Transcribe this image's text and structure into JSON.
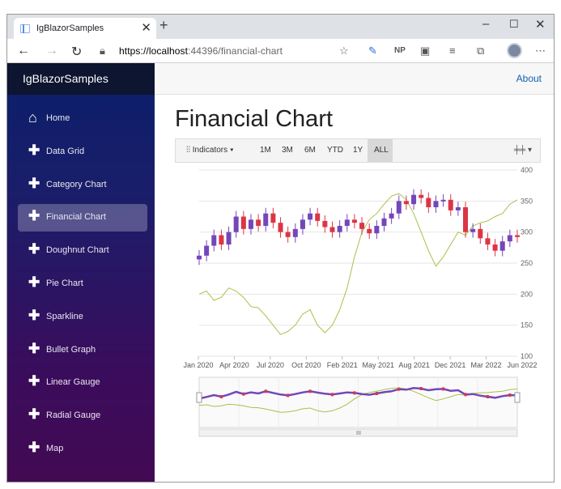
{
  "browser": {
    "tab_title": "IgBlazorSamples",
    "tab_close": "✕",
    "new_tab": "+",
    "url_host": "https://localhost",
    "url_path": ":44396/financial-chart",
    "ext_np": "NP"
  },
  "app": {
    "brand": "IgBlazorSamples",
    "about_link": "About",
    "page_title": "Financial Chart"
  },
  "sidebar": {
    "items": [
      {
        "label": "Home",
        "icon": "home-icon"
      },
      {
        "label": "Data Grid",
        "icon": "plus-icon"
      },
      {
        "label": "Category Chart",
        "icon": "plus-icon"
      },
      {
        "label": "Financial Chart",
        "icon": "plus-icon",
        "active": true
      },
      {
        "label": "Doughnut Chart",
        "icon": "plus-icon"
      },
      {
        "label": "Pie Chart",
        "icon": "plus-icon"
      },
      {
        "label": "Sparkline",
        "icon": "plus-icon"
      },
      {
        "label": "Bullet Graph",
        "icon": "plus-icon"
      },
      {
        "label": "Linear Gauge",
        "icon": "plus-icon"
      },
      {
        "label": "Radial Gauge",
        "icon": "plus-icon"
      },
      {
        "label": "Map",
        "icon": "plus-icon"
      }
    ]
  },
  "toolbar": {
    "indicators_label": "Indicators",
    "ranges": [
      "1M",
      "3M",
      "6M",
      "YTD",
      "1Y"
    ],
    "all_label": "ALL",
    "series_icon": "candlestick-icon"
  },
  "colors": {
    "up": "#7446b9",
    "down": "#dc3545",
    "volume_line": "#a8c14a",
    "accent_link": "#1060b0"
  },
  "chart_data": {
    "type": "candlestick",
    "y_axis_ticks": [
      "400",
      "350",
      "300",
      "250",
      "200",
      "150",
      "100"
    ],
    "ylim": [
      100,
      400
    ],
    "x_axis_ticks": [
      "Jan 2020",
      "Apr 2020",
      "Jul 2020",
      "Oct 2020",
      "Feb 2021",
      "May 2021",
      "Aug 2021",
      "Dec 2021",
      "Mar 2022",
      "Jun 2022"
    ],
    "price_close": [
      262,
      278,
      295,
      280,
      300,
      325,
      305,
      320,
      310,
      330,
      315,
      300,
      292,
      305,
      320,
      330,
      318,
      308,
      300,
      310,
      320,
      315,
      305,
      298,
      310,
      322,
      330,
      350,
      345,
      360,
      355,
      340,
      350,
      352,
      335,
      340,
      300,
      305,
      290,
      280,
      270,
      285,
      295,
      292
    ],
    "comparison_line": [
      200,
      205,
      190,
      195,
      210,
      205,
      195,
      180,
      178,
      165,
      150,
      135,
      140,
      150,
      168,
      175,
      150,
      138,
      150,
      175,
      210,
      260,
      300,
      320,
      330,
      345,
      358,
      362,
      352,
      330,
      300,
      270,
      245,
      260,
      280,
      300,
      295,
      310,
      315,
      318,
      325,
      330,
      345,
      352
    ]
  }
}
